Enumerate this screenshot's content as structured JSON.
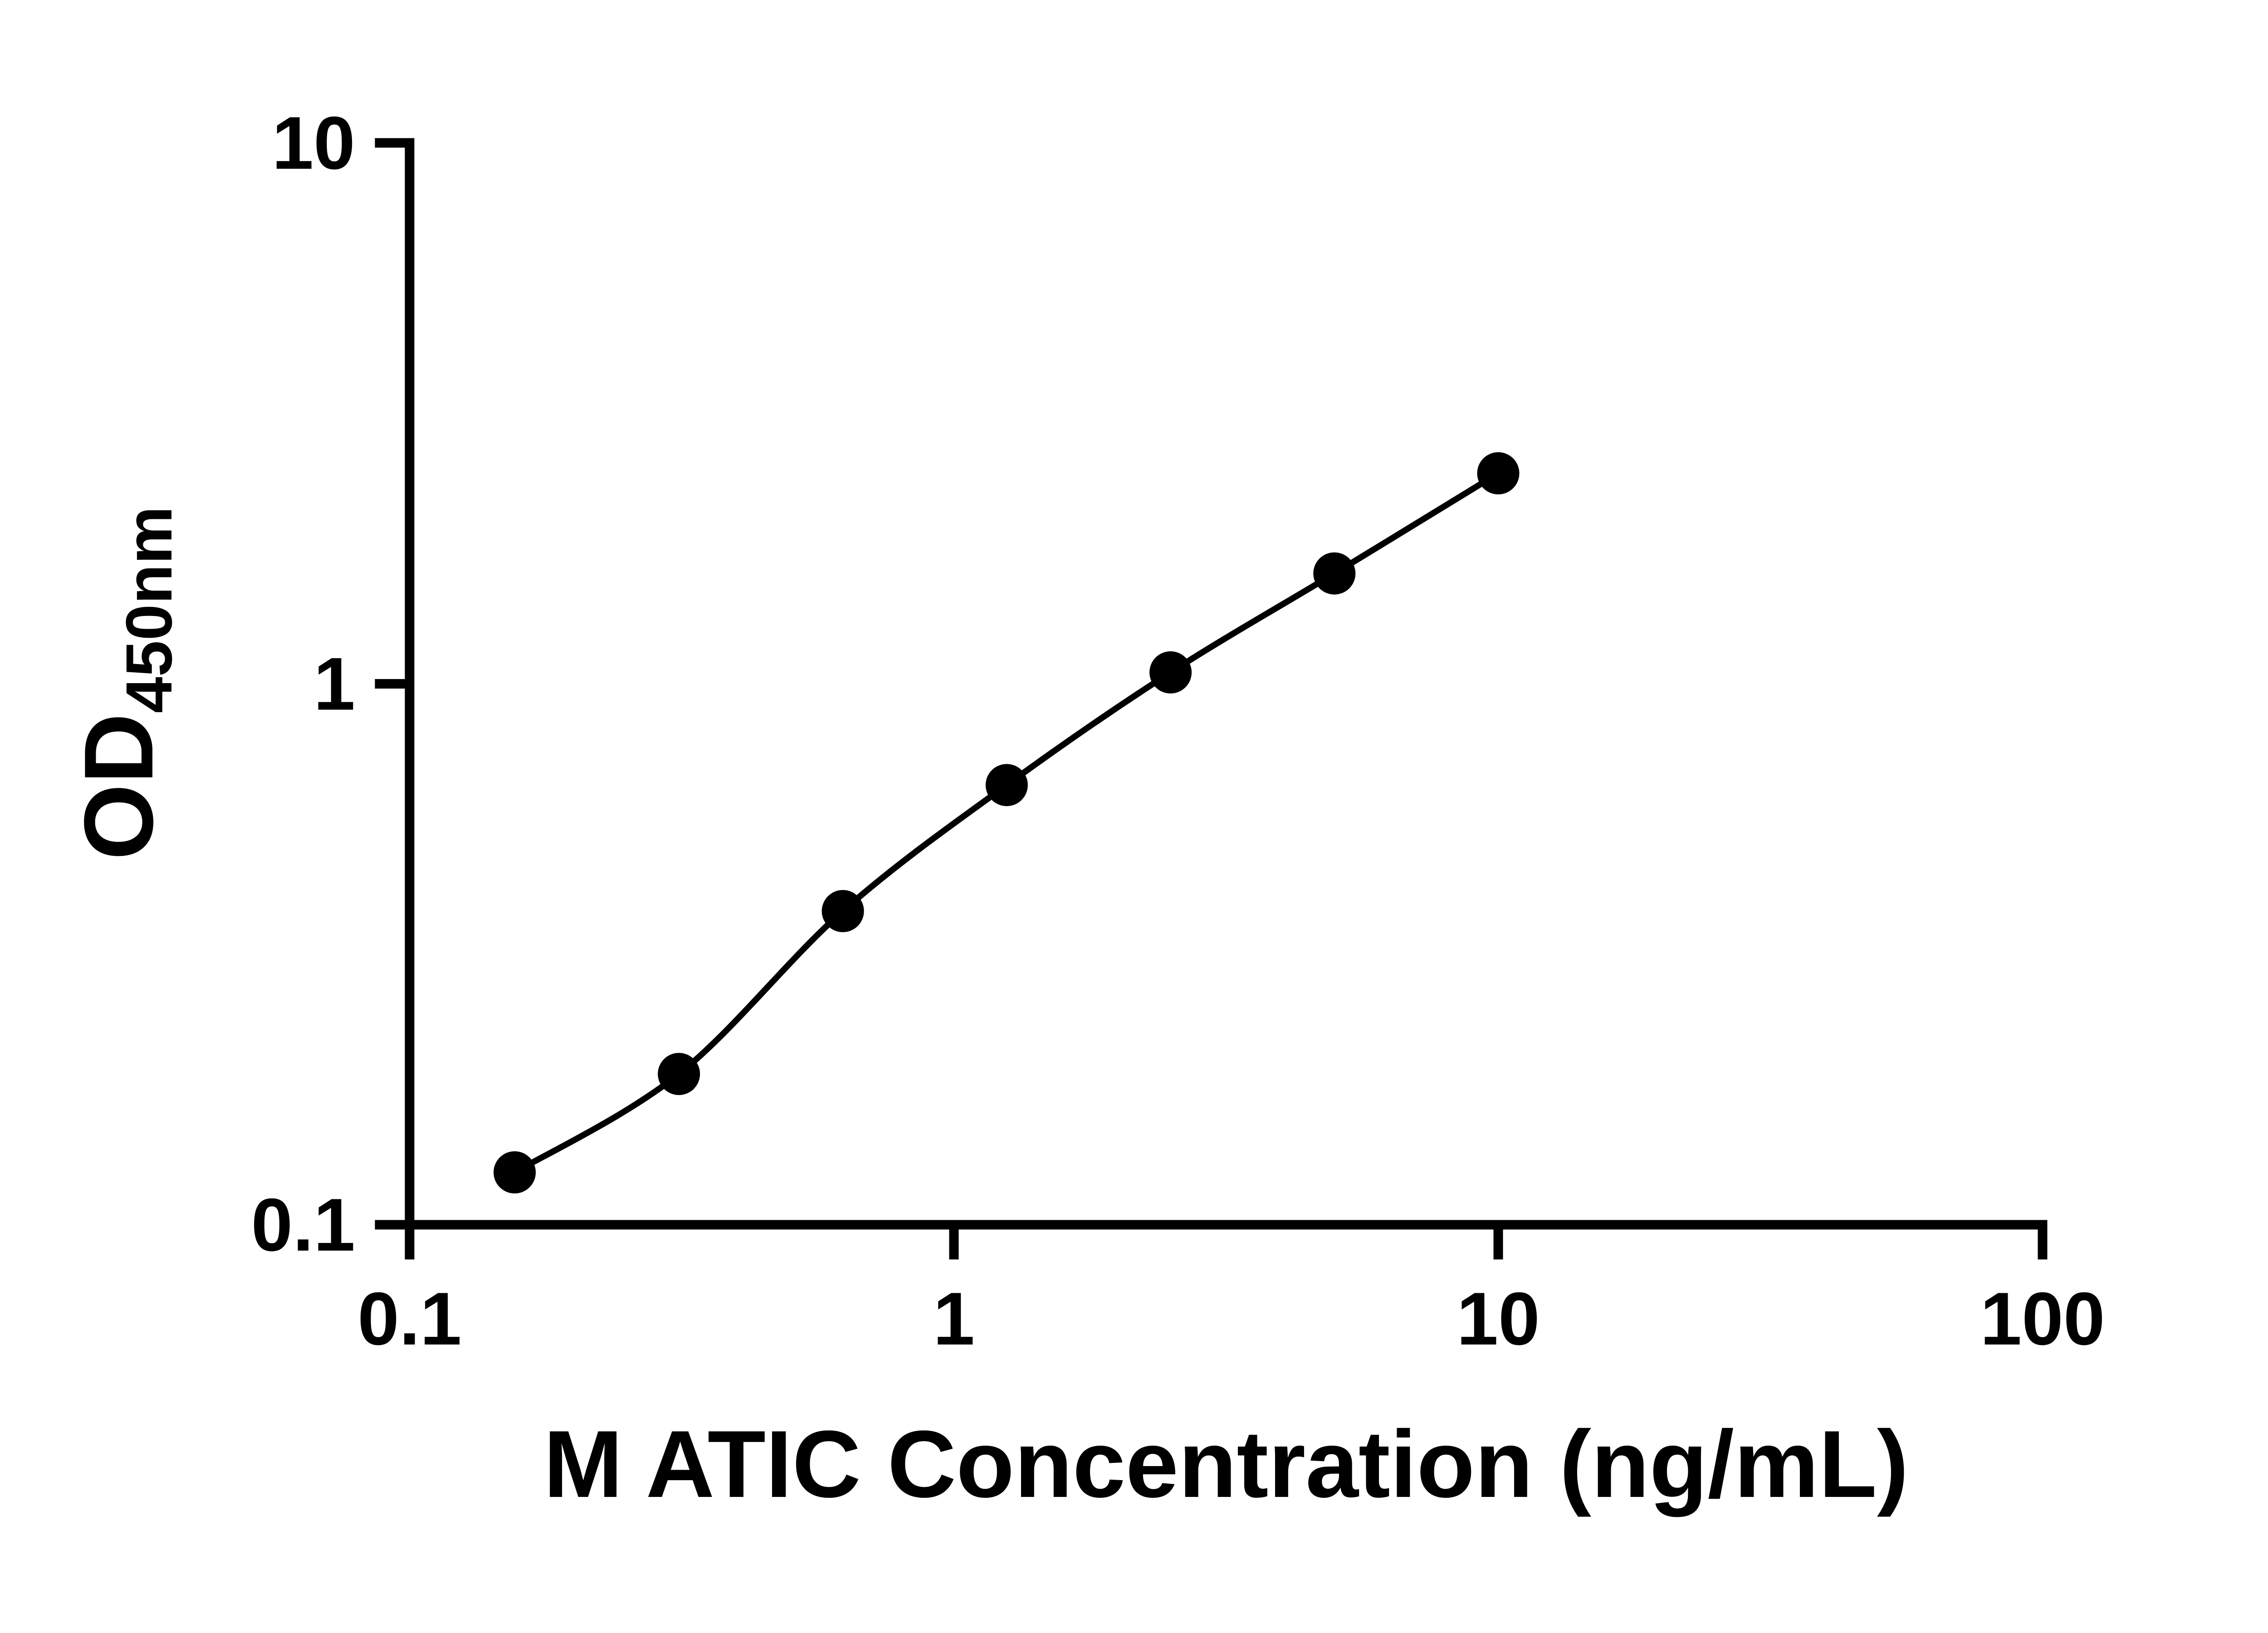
{
  "figure": {
    "background_color": "#ffffff",
    "foreground_color": "#000000"
  },
  "chart_data": {
    "type": "scatter",
    "x": [
      0.156,
      0.3125,
      0.625,
      1.25,
      2.5,
      5,
      10
    ],
    "y": [
      0.125,
      0.19,
      0.38,
      0.65,
      1.05,
      1.6,
      2.45
    ],
    "title": "",
    "xlabel": "M ATIC Concentration (ng/mL)",
    "ylabel_main": "OD",
    "ylabel_sub": "450nm",
    "xscale": "log",
    "yscale": "log",
    "xlim": [
      0.1,
      100
    ],
    "ylim": [
      0.1,
      10
    ],
    "x_ticks": [
      "0.1",
      "1",
      "10",
      "100"
    ],
    "y_ticks": [
      "0.1",
      "1",
      "10"
    ],
    "grid": false,
    "legend": "none",
    "marker": "filled-circle",
    "marker_color": "#000000",
    "line_color": "#000000"
  }
}
